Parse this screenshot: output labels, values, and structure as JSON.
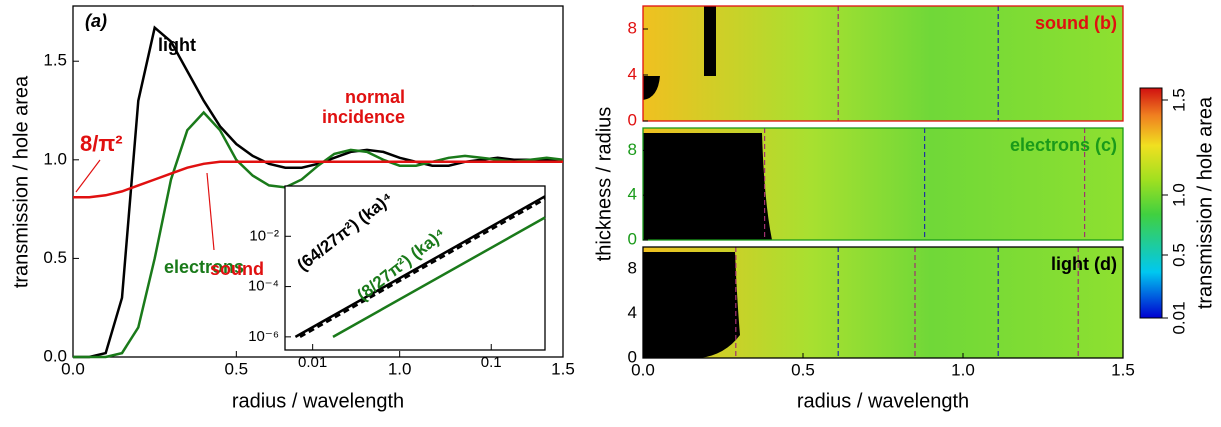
{
  "chart_data": [
    {
      "type": "line",
      "xlabel": "radius / wavelength",
      "ylabel": "transmission / hole area",
      "x": [
        0,
        0.05,
        0.1,
        0.15,
        0.2,
        0.25,
        0.3,
        0.35,
        0.4,
        0.45,
        0.5,
        0.55,
        0.6,
        0.65,
        0.7,
        0.75,
        0.8,
        0.85,
        0.9,
        0.95,
        1.0,
        1.05,
        1.1,
        1.15,
        1.2,
        1.25,
        1.3,
        1.35,
        1.4,
        1.45,
        1.5
      ],
      "series": [
        {
          "name": "light",
          "color": "#000000",
          "values": [
            0,
            0,
            0.02,
            0.3,
            1.3,
            1.67,
            1.6,
            1.45,
            1.3,
            1.17,
            1.08,
            1.02,
            0.98,
            0.96,
            0.96,
            0.98,
            1.01,
            1.04,
            1.05,
            1.04,
            1.01,
            0.99,
            0.97,
            0.97,
            0.99,
            1.0,
            1.01,
            1.0,
            1.0,
            1.0,
            1.0
          ]
        },
        {
          "name": "electrons",
          "color": "#1a7a1a",
          "values": [
            0,
            0,
            0,
            0.02,
            0.15,
            0.5,
            0.9,
            1.15,
            1.24,
            1.15,
            1.0,
            0.92,
            0.87,
            0.86,
            0.9,
            0.97,
            1.03,
            1.05,
            1.04,
            1.0,
            0.97,
            0.97,
            0.99,
            1.01,
            1.02,
            1.01,
            1.0,
            0.99,
            1.0,
            1.01,
            1.0
          ]
        },
        {
          "name": "sound",
          "color": "#e01010",
          "values": [
            0.81,
            0.81,
            0.82,
            0.84,
            0.87,
            0.9,
            0.93,
            0.96,
            0.98,
            0.99,
            0.99,
            0.99,
            0.99,
            0.99,
            0.99,
            0.99,
            0.99,
            0.99,
            0.99,
            0.99,
            0.99,
            0.99,
            0.99,
            0.99,
            0.99,
            0.99,
            0.99,
            0.99,
            0.99,
            0.99,
            0.99
          ]
        }
      ],
      "xlim": [
        0,
        1.5
      ],
      "xticks": [
        {
          "value": 0,
          "label": "0.0"
        },
        0.5,
        {
          "value": 1,
          "label": "1.0"
        },
        1.5
      ],
      "ylim": [
        0,
        1.78
      ],
      "yticks": [
        {
          "value": 0,
          "label": "0.0"
        },
        0.5,
        {
          "value": 1,
          "label": "1.0"
        },
        1.5
      ],
      "panel_label": "(a)",
      "sound_limit": "8/π²",
      "incidence_label": [
        "normal",
        "incidence"
      ]
    },
    {
      "type": "line",
      "log_x": true,
      "log_y": true,
      "series": [
        {
          "name": "(64/27π²) (ka)⁴",
          "color": "#000000",
          "x": [
            0.008,
            0.2
          ],
          "values": [
            1e-06,
            0.39
          ]
        },
        {
          "color": "#000000",
          "dash": true,
          "x": [
            0.0085,
            0.2
          ],
          "values": [
            1e-06,
            0.3
          ]
        },
        {
          "name": "(8/27π²) (ka)⁴",
          "color": "#1a7a1a",
          "x": [
            0.013,
            0.2
          ],
          "values": [
            1e-06,
            0.056
          ]
        }
      ],
      "xlim": [
        0.007,
        0.2
      ],
      "xticks": [
        0.01,
        0.1
      ],
      "ylim": [
        3e-07,
        1
      ],
      "yticks": [
        {
          "value": 1e-06,
          "label": "10⁻⁶"
        },
        {
          "value": 0.0001,
          "label": "10⁻⁴"
        },
        {
          "value": 0.01,
          "label": "10⁻²"
        }
      ]
    },
    {
      "type": "heatmap",
      "label": "sound (b)",
      "color": "#e01010",
      "xlim": [
        0,
        1.5
      ],
      "ylim": [
        0,
        10
      ],
      "yticks": [
        0,
        4,
        8
      ],
      "cutoffs": [
        0.61,
        1.11
      ]
    },
    {
      "type": "heatmap",
      "label": "electrons (c)",
      "color": "#1a9a1a",
      "xlim": [
        0,
        1.5
      ],
      "ylim": [
        0,
        10
      ],
      "yticks": [
        0,
        4,
        8
      ],
      "cutoffs": [
        0.38,
        0.88,
        1.38
      ],
      "ylabel": "thickness / radius"
    },
    {
      "type": "heatmap",
      "label": "light (d)",
      "color": "#000000",
      "xlim": [
        0,
        1.5
      ],
      "ylim": [
        0,
        10
      ],
      "yticks": [
        0,
        4,
        8
      ],
      "cutoffs": [
        0.29,
        0.61,
        0.85,
        1.11,
        1.36
      ],
      "xticks": [
        {
          "value": 0,
          "label": "0.0"
        },
        0.5,
        {
          "value": 1,
          "label": "1.0"
        },
        1.5
      ],
      "xlabel": "radius / wavelength"
    },
    {
      "type": "colorbar",
      "label": "transmission / hole area",
      "ticks": [
        "0.01",
        "0.5",
        "1.0",
        "1.5"
      ]
    }
  ]
}
